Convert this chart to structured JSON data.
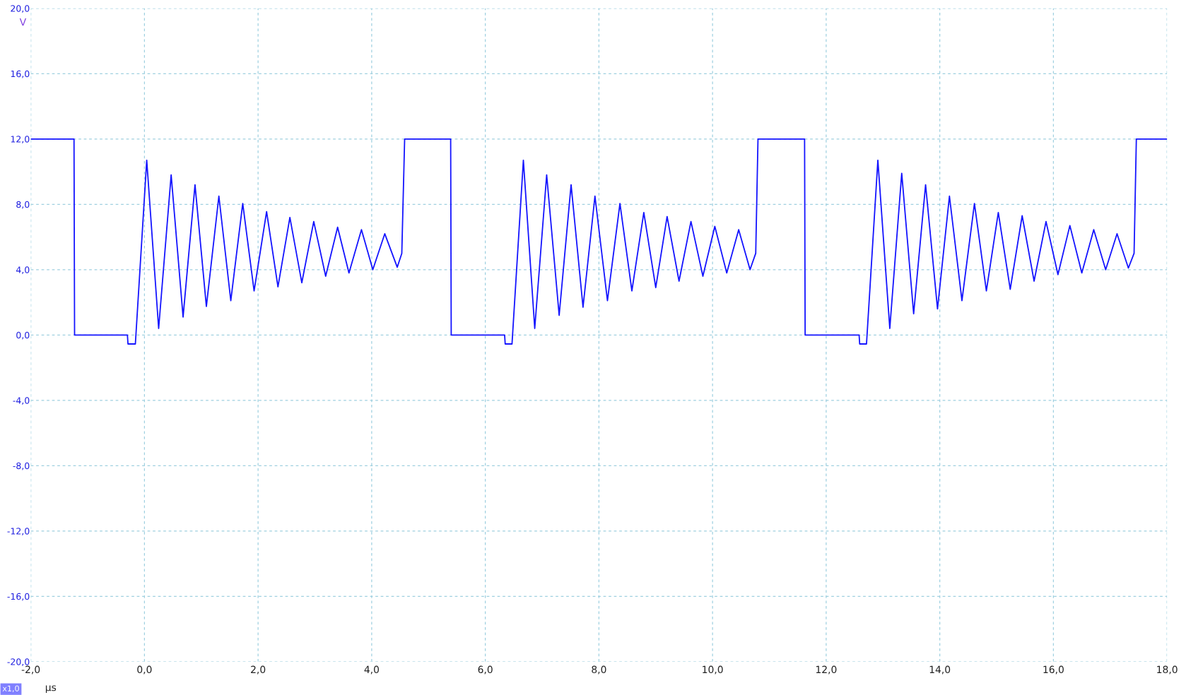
{
  "chart_data": {
    "type": "line",
    "xlabel": "µs",
    "ylabel": "V",
    "annotations": [
      "x1,0"
    ],
    "series": [
      {
        "color": "#1414ff",
        "x": [
          -2.0,
          -1.24,
          -1.23,
          -0.3,
          -0.29,
          -0.16,
          0.04,
          0.25,
          0.47,
          0.68,
          0.89,
          1.09,
          1.31,
          1.52,
          1.73,
          1.93,
          2.15,
          2.35,
          2.56,
          2.77,
          2.98,
          3.19,
          3.4,
          3.6,
          3.82,
          4.02,
          4.23,
          4.45,
          4.53,
          4.58,
          5.39,
          5.4,
          6.34,
          6.35,
          6.47,
          6.67,
          6.87,
          7.08,
          7.3,
          7.51,
          7.72,
          7.93,
          8.15,
          8.37,
          8.58,
          8.79,
          9.0,
          9.2,
          9.41,
          9.62,
          9.83,
          10.04,
          10.25,
          10.46,
          10.66,
          10.76,
          10.8,
          11.62,
          11.63,
          12.58,
          12.59,
          12.71,
          12.91,
          13.12,
          13.33,
          13.54,
          13.75,
          13.96,
          14.17,
          14.39,
          14.61,
          14.82,
          15.03,
          15.24,
          15.45,
          15.66,
          15.87,
          16.08,
          16.29,
          16.5,
          16.71,
          16.92,
          17.12,
          17.32,
          17.42,
          17.46,
          18.0
        ],
        "values": [
          12,
          12,
          0,
          0,
          -0.55,
          -0.55,
          10.7,
          0.4,
          9.8,
          1.1,
          9.2,
          1.75,
          8.5,
          2.1,
          8.05,
          2.7,
          7.55,
          2.95,
          7.2,
          3.2,
          6.95,
          3.6,
          6.6,
          3.8,
          6.45,
          4.0,
          6.2,
          4.15,
          5.0,
          12,
          12,
          0,
          0,
          -0.55,
          -0.55,
          10.7,
          0.4,
          9.8,
          1.2,
          9.2,
          1.7,
          8.5,
          2.1,
          8.05,
          2.7,
          7.5,
          2.9,
          7.25,
          3.3,
          6.95,
          3.6,
          6.65,
          3.8,
          6.45,
          4.0,
          5.0,
          12,
          12,
          0,
          0,
          -0.55,
          -0.55,
          10.7,
          0.4,
          9.9,
          1.3,
          9.2,
          1.6,
          8.5,
          2.1,
          8.05,
          2.7,
          7.5,
          2.8,
          7.3,
          3.3,
          6.95,
          3.7,
          6.7,
          3.8,
          6.45,
          4.0,
          6.2,
          4.1,
          5.0,
          12,
          12
        ]
      }
    ],
    "xlim": [
      -2,
      18
    ],
    "ylim": [
      -20,
      20
    ],
    "xticks": [
      {
        "value": -2,
        "label": "-2,0"
      },
      {
        "value": 0,
        "label": "0,0"
      },
      {
        "value": 2,
        "label": "2,0"
      },
      {
        "value": 4,
        "label": "4,0"
      },
      {
        "value": 6,
        "label": "6,0"
      },
      {
        "value": 8,
        "label": "8,0"
      },
      {
        "value": 10,
        "label": "10,0"
      },
      {
        "value": 12,
        "label": "12,0"
      },
      {
        "value": 14,
        "label": "14,0"
      },
      {
        "value": 16,
        "label": "16,0"
      },
      {
        "value": 18,
        "label": "18,0"
      }
    ],
    "yticks": [
      {
        "value": -20,
        "label": "-20,0"
      },
      {
        "value": -16,
        "label": "-16,0"
      },
      {
        "value": -12,
        "label": "-12,0"
      },
      {
        "value": -8,
        "label": "-8,0"
      },
      {
        "value": -4,
        "label": "-4,0"
      },
      {
        "value": 0,
        "label": "0,0"
      },
      {
        "value": 4,
        "label": "4,0"
      },
      {
        "value": 8,
        "label": "8,0"
      },
      {
        "value": 12,
        "label": "12,0"
      },
      {
        "value": 16,
        "label": "16,0"
      },
      {
        "value": 20,
        "label": "20,0"
      }
    ],
    "grid": true,
    "line_style": "solid",
    "marker": "none"
  }
}
